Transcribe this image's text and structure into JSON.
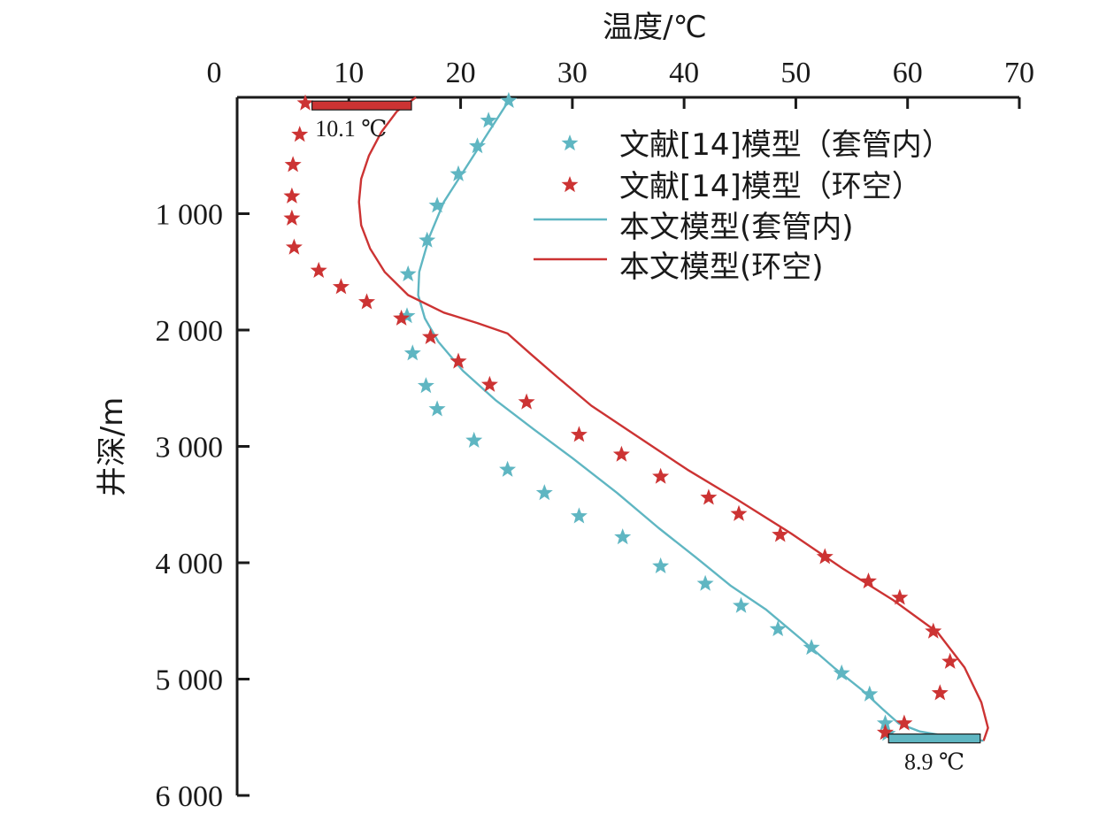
{
  "chart_data": {
    "type": "line",
    "x_axis": {
      "title": "温度/℃",
      "position": "top",
      "range": [
        0,
        70
      ],
      "ticks": [
        0,
        10,
        20,
        30,
        40,
        50,
        60,
        70
      ],
      "tick_labels": [
        "0",
        "10",
        "20",
        "30",
        "40",
        "50",
        "60",
        "70"
      ]
    },
    "y_axis": {
      "title": "井深/m",
      "range": [
        0,
        6000
      ],
      "inverted": true,
      "ticks": [
        1000,
        2000,
        3000,
        4000,
        5000,
        6000
      ],
      "tick_labels": [
        "1 000",
        "2 000",
        "3 000",
        "4 000",
        "5 000",
        "6 000"
      ]
    },
    "colors": {
      "casing": "#5fb6c2",
      "annulus": "#cc3333",
      "axis": "#1a1a1a"
    },
    "series": [
      {
        "name": "文献[14]模型（套管内）",
        "kind": "scatter",
        "marker": "star",
        "color_key": "casing",
        "points": [
          [
            24.3,
            30
          ],
          [
            22.5,
            200
          ],
          [
            21.5,
            420
          ],
          [
            19.8,
            660
          ],
          [
            17.9,
            930
          ],
          [
            17.0,
            1230
          ],
          [
            15.3,
            1520
          ],
          [
            15.2,
            1880
          ],
          [
            15.7,
            2200
          ],
          [
            16.9,
            2480
          ],
          [
            17.9,
            2680
          ],
          [
            21.2,
            2950
          ],
          [
            24.2,
            3200
          ],
          [
            27.5,
            3400
          ],
          [
            30.6,
            3600
          ],
          [
            34.5,
            3780
          ],
          [
            37.9,
            4030
          ],
          [
            41.9,
            4180
          ],
          [
            45.1,
            4370
          ],
          [
            48.4,
            4570
          ],
          [
            51.4,
            4730
          ],
          [
            54.1,
            4950
          ],
          [
            56.6,
            5130
          ],
          [
            58.0,
            5380
          ],
          [
            58.2,
            5470
          ]
        ]
      },
      {
        "name": "文献[14]模型（环空）",
        "kind": "scatter",
        "marker": "star",
        "color_key": "annulus",
        "points": [
          [
            6.1,
            50
          ],
          [
            5.6,
            320
          ],
          [
            5.0,
            580
          ],
          [
            4.9,
            850
          ],
          [
            4.9,
            1040
          ],
          [
            5.1,
            1290
          ],
          [
            7.3,
            1490
          ],
          [
            9.3,
            1630
          ],
          [
            11.6,
            1760
          ],
          [
            14.7,
            1900
          ],
          [
            17.3,
            2060
          ],
          [
            19.8,
            2270
          ],
          [
            22.6,
            2470
          ],
          [
            25.9,
            2620
          ],
          [
            30.6,
            2900
          ],
          [
            34.4,
            3070
          ],
          [
            37.9,
            3260
          ],
          [
            42.2,
            3440
          ],
          [
            44.9,
            3580
          ],
          [
            48.6,
            3760
          ],
          [
            52.6,
            3950
          ],
          [
            56.5,
            4160
          ],
          [
            59.3,
            4300
          ],
          [
            62.3,
            4590
          ],
          [
            63.8,
            4850
          ],
          [
            62.9,
            5120
          ],
          [
            59.7,
            5380
          ],
          [
            58.0,
            5460
          ]
        ]
      },
      {
        "name": "本文模型(套管内)",
        "kind": "line",
        "color_key": "casing",
        "points": [
          [
            24.5,
            0
          ],
          [
            22.5,
            300
          ],
          [
            20.5,
            600
          ],
          [
            18.5,
            900
          ],
          [
            17.2,
            1200
          ],
          [
            16.3,
            1500
          ],
          [
            16.2,
            1700
          ],
          [
            16.8,
            1900
          ],
          [
            18.0,
            2100
          ],
          [
            20.2,
            2350
          ],
          [
            23.1,
            2600
          ],
          [
            26.5,
            2850
          ],
          [
            30.0,
            3100
          ],
          [
            34.0,
            3400
          ],
          [
            37.7,
            3700
          ],
          [
            41.0,
            3950
          ],
          [
            44.2,
            4200
          ],
          [
            47.3,
            4400
          ],
          [
            50.4,
            4650
          ],
          [
            53.4,
            4900
          ],
          [
            56.0,
            5100
          ],
          [
            57.8,
            5260
          ],
          [
            59.2,
            5380
          ],
          [
            61.1,
            5450
          ],
          [
            63.5,
            5490
          ],
          [
            66.8,
            5530
          ]
        ]
      },
      {
        "name": "本文模型(环空)",
        "kind": "line",
        "color_key": "annulus",
        "points": [
          [
            16.0,
            0
          ],
          [
            14.3,
            120
          ],
          [
            12.9,
            300
          ],
          [
            11.8,
            500
          ],
          [
            11.1,
            700
          ],
          [
            10.9,
            900
          ],
          [
            11.1,
            1100
          ],
          [
            11.9,
            1300
          ],
          [
            13.2,
            1500
          ],
          [
            15.3,
            1700
          ],
          [
            18.5,
            1850
          ],
          [
            21.5,
            1940
          ],
          [
            24.2,
            2030
          ],
          [
            26.2,
            2200
          ],
          [
            28.6,
            2400
          ],
          [
            31.7,
            2650
          ],
          [
            35.6,
            2900
          ],
          [
            40.3,
            3200
          ],
          [
            44.8,
            3460
          ],
          [
            49.6,
            3750
          ],
          [
            54.2,
            4050
          ],
          [
            58.7,
            4320
          ],
          [
            62.7,
            4600
          ],
          [
            65.1,
            4900
          ],
          [
            66.6,
            5200
          ],
          [
            67.2,
            5420
          ],
          [
            66.8,
            5530
          ]
        ]
      }
    ],
    "legend": {
      "placement": "top-right",
      "labels": [
        "文献[14]模型（套管内）",
        "文献[14]模型（环空）",
        "本文模型(套管内)",
        "本文模型(环空)"
      ]
    },
    "annotations": [
      {
        "label": "10.1 ℃",
        "x_range": [
          6.7,
          15.6
        ],
        "depth": 70,
        "color_key": "annulus",
        "label_side": "below"
      },
      {
        "label": "8.9 ℃",
        "x_range": [
          58.3,
          66.5
        ],
        "depth": 5510,
        "color_key": "casing",
        "label_side": "below"
      }
    ]
  }
}
